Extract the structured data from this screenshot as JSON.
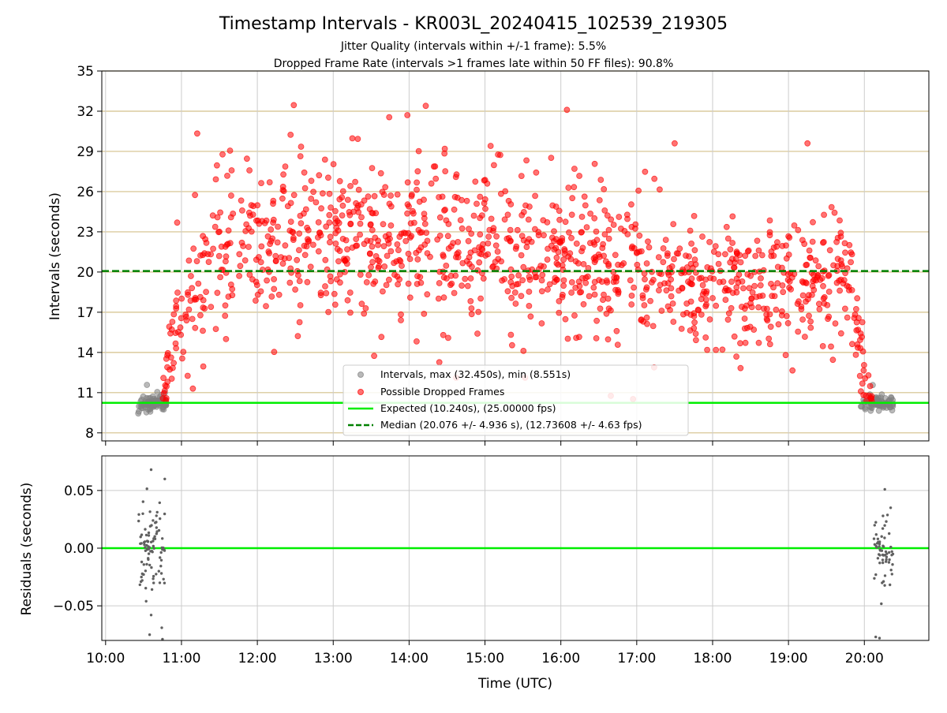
{
  "chart_data": {
    "type": "scatter",
    "title": "Timestamp Intervals - KR003L_20240415_102539_219305",
    "subtitle_1": "Jitter Quality (intervals within +/-1 frame): 5.5%",
    "subtitle_2": "Dropped Frame Rate (intervals >1 frames late within 50 FF files): 90.8%",
    "xlabel": "Time (UTC)",
    "top_panel": {
      "ylabel": "Intervals (seconds)",
      "ylim": [
        7.4,
        35
      ],
      "yticks": [
        "8",
        "11",
        "14",
        "17",
        "20",
        "23",
        "26",
        "29",
        "32",
        "35"
      ],
      "ytick_values": [
        8,
        11,
        14,
        17,
        20,
        23,
        26,
        29,
        32,
        35
      ],
      "expected_interval": 10.24,
      "median_interval": 20.076,
      "series": [
        {
          "name": "Intervals, max (32.450s), min (8.551s)",
          "color": "#808080",
          "clusters": [
            {
              "x_start_h": 10.43,
              "x_end_h": 10.8,
              "y_center": 10.25,
              "y_spread": 0.4,
              "count": 95
            },
            {
              "x_start_h": 19.95,
              "x_end_h": 20.38,
              "y_center": 10.2,
              "y_spread": 0.45,
              "count": 70
            }
          ]
        },
        {
          "name": "Possible Dropped Frames",
          "color": "#ff0000",
          "envelope_hours": [
            10.75,
            10.8,
            10.9,
            11.0,
            11.2,
            11.5,
            12.0,
            13.0,
            14.0,
            15.0,
            16.0,
            16.5,
            17.0,
            17.5,
            18.0,
            18.5,
            19.0,
            19.5,
            19.7,
            19.82,
            19.9,
            20.0,
            20.1
          ],
          "envelope_mean": [
            10.6,
            12.0,
            15.5,
            18.5,
            20.0,
            21.0,
            21.8,
            22.0,
            22.3,
            22.0,
            21.5,
            20.8,
            20.0,
            19.4,
            19.0,
            18.8,
            19.0,
            19.5,
            20.0,
            19.0,
            16.0,
            12.0,
            10.6
          ],
          "envelope_spread": [
            0.5,
            1.2,
            2.2,
            2.8,
            3.0,
            3.2,
            3.2,
            3.2,
            3.2,
            3.2,
            3.0,
            2.8,
            2.5,
            2.3,
            2.2,
            2.2,
            2.2,
            2.3,
            2.5,
            2.2,
            1.8,
            1.2,
            0.5
          ],
          "count": 1200,
          "notable_points": [
            {
              "x_h": 12.48,
              "y": 32.45
            },
            {
              "x_h": 14.22,
              "y": 32.4
            },
            {
              "x_h": 16.08,
              "y": 32.1
            },
            {
              "x_h": 11.15,
              "y": 11.3
            },
            {
              "x_h": 17.5,
              "y": 29.6
            },
            {
              "x_h": 19.25,
              "y": 29.6
            }
          ]
        }
      ],
      "lines": [
        {
          "name": "Expected (10.240s), (25.00000 fps)",
          "value": 10.24,
          "color": "#00ee00",
          "style": "solid"
        },
        {
          "name": "Median (20.076 +/- 4.936 s), (12.73608 +/- 4.63 fps)",
          "value": 20.076,
          "color": "#008000",
          "style": "dashed"
        }
      ]
    },
    "bottom_panel": {
      "ylabel": "Residuals (seconds)",
      "ylim": [
        -0.08,
        0.08
      ],
      "yticks": [
        "0.05",
        "0.00",
        "−0.05"
      ],
      "ytick_values": [
        0.05,
        0.0,
        -0.05
      ],
      "zero_line_color": "#00ee00",
      "series": [
        {
          "name": "residuals",
          "color": "#606060",
          "clusters": [
            {
              "x_start_h": 10.43,
              "x_end_h": 10.78,
              "spread": 0.032,
              "count": 90
            },
            {
              "x_start_h": 20.12,
              "x_end_h": 20.38,
              "spread": 0.027,
              "count": 60
            }
          ],
          "notable_points": [
            {
              "x_h": 10.6,
              "y": 0.068
            },
            {
              "x_h": 10.78,
              "y": 0.06
            },
            {
              "x_h": 10.6,
              "y": -0.058
            },
            {
              "x_h": 10.58,
              "y": -0.075
            },
            {
              "x_h": 10.74,
              "y": -0.069
            },
            {
              "x_h": 10.75,
              "y": -0.079
            },
            {
              "x_h": 20.27,
              "y": 0.051
            },
            {
              "x_h": 20.15,
              "y": -0.077
            },
            {
              "x_h": 20.2,
              "y": -0.078
            }
          ]
        }
      ]
    },
    "x_axis": {
      "xlim_hours": [
        9.95,
        20.85
      ],
      "ticks": [
        "10:00",
        "11:00",
        "12:00",
        "13:00",
        "14:00",
        "15:00",
        "16:00",
        "17:00",
        "18:00",
        "19:00",
        "20:00"
      ],
      "tick_values_hours": [
        10,
        11,
        12,
        13,
        14,
        15,
        16,
        17,
        18,
        19,
        20
      ]
    },
    "grid": true,
    "legend_placement": "lower-center"
  }
}
